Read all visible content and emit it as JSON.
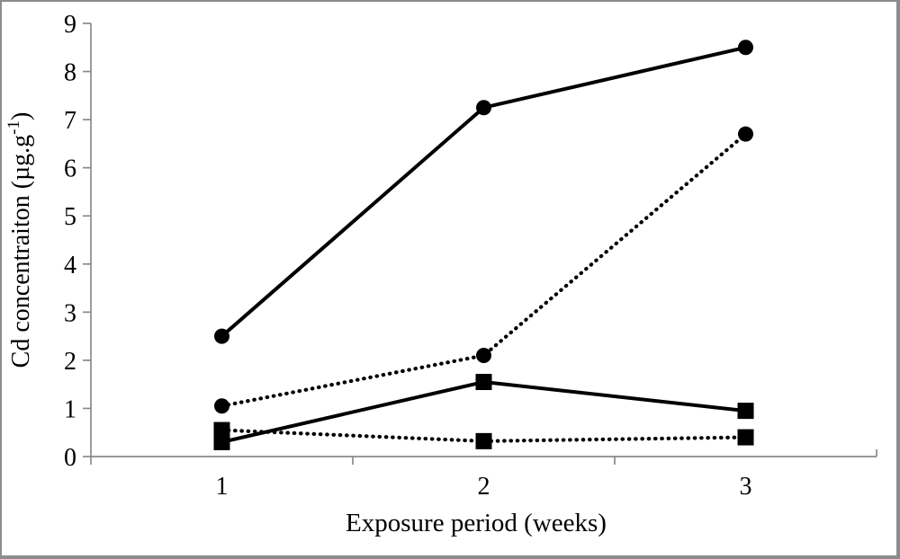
{
  "chart_data": {
    "type": "line",
    "title": "",
    "xlabel": "Exposure period (weeks)",
    "ylabel": "Cd concentraiton (µg.g-1)",
    "ylabel_parts": {
      "pre": "Cd concentraiton (µg.g",
      "sup": "-1",
      "post": ")"
    },
    "x": [
      1,
      2,
      3
    ],
    "x_tick_labels": [
      "1",
      "2",
      "3"
    ],
    "y_ticks": [
      0,
      1,
      2,
      3,
      4,
      5,
      6,
      7,
      8,
      9
    ],
    "ylim": [
      0,
      9
    ],
    "grid": false,
    "legend": "none",
    "line_color": "#000000",
    "axis_color": "#8a8a8a",
    "series": [
      {
        "name": "solid-circle",
        "line": "solid",
        "marker": "circle",
        "values": [
          2.5,
          7.25,
          8.5
        ]
      },
      {
        "name": "dotted-circle",
        "line": "dotted",
        "marker": "circle",
        "values": [
          1.05,
          2.1,
          6.7
        ]
      },
      {
        "name": "solid-square",
        "line": "solid",
        "marker": "square",
        "values": [
          0.3,
          1.55,
          0.95
        ]
      },
      {
        "name": "dotted-square",
        "line": "dotted",
        "marker": "square",
        "values": [
          0.55,
          0.32,
          0.4
        ]
      }
    ]
  }
}
